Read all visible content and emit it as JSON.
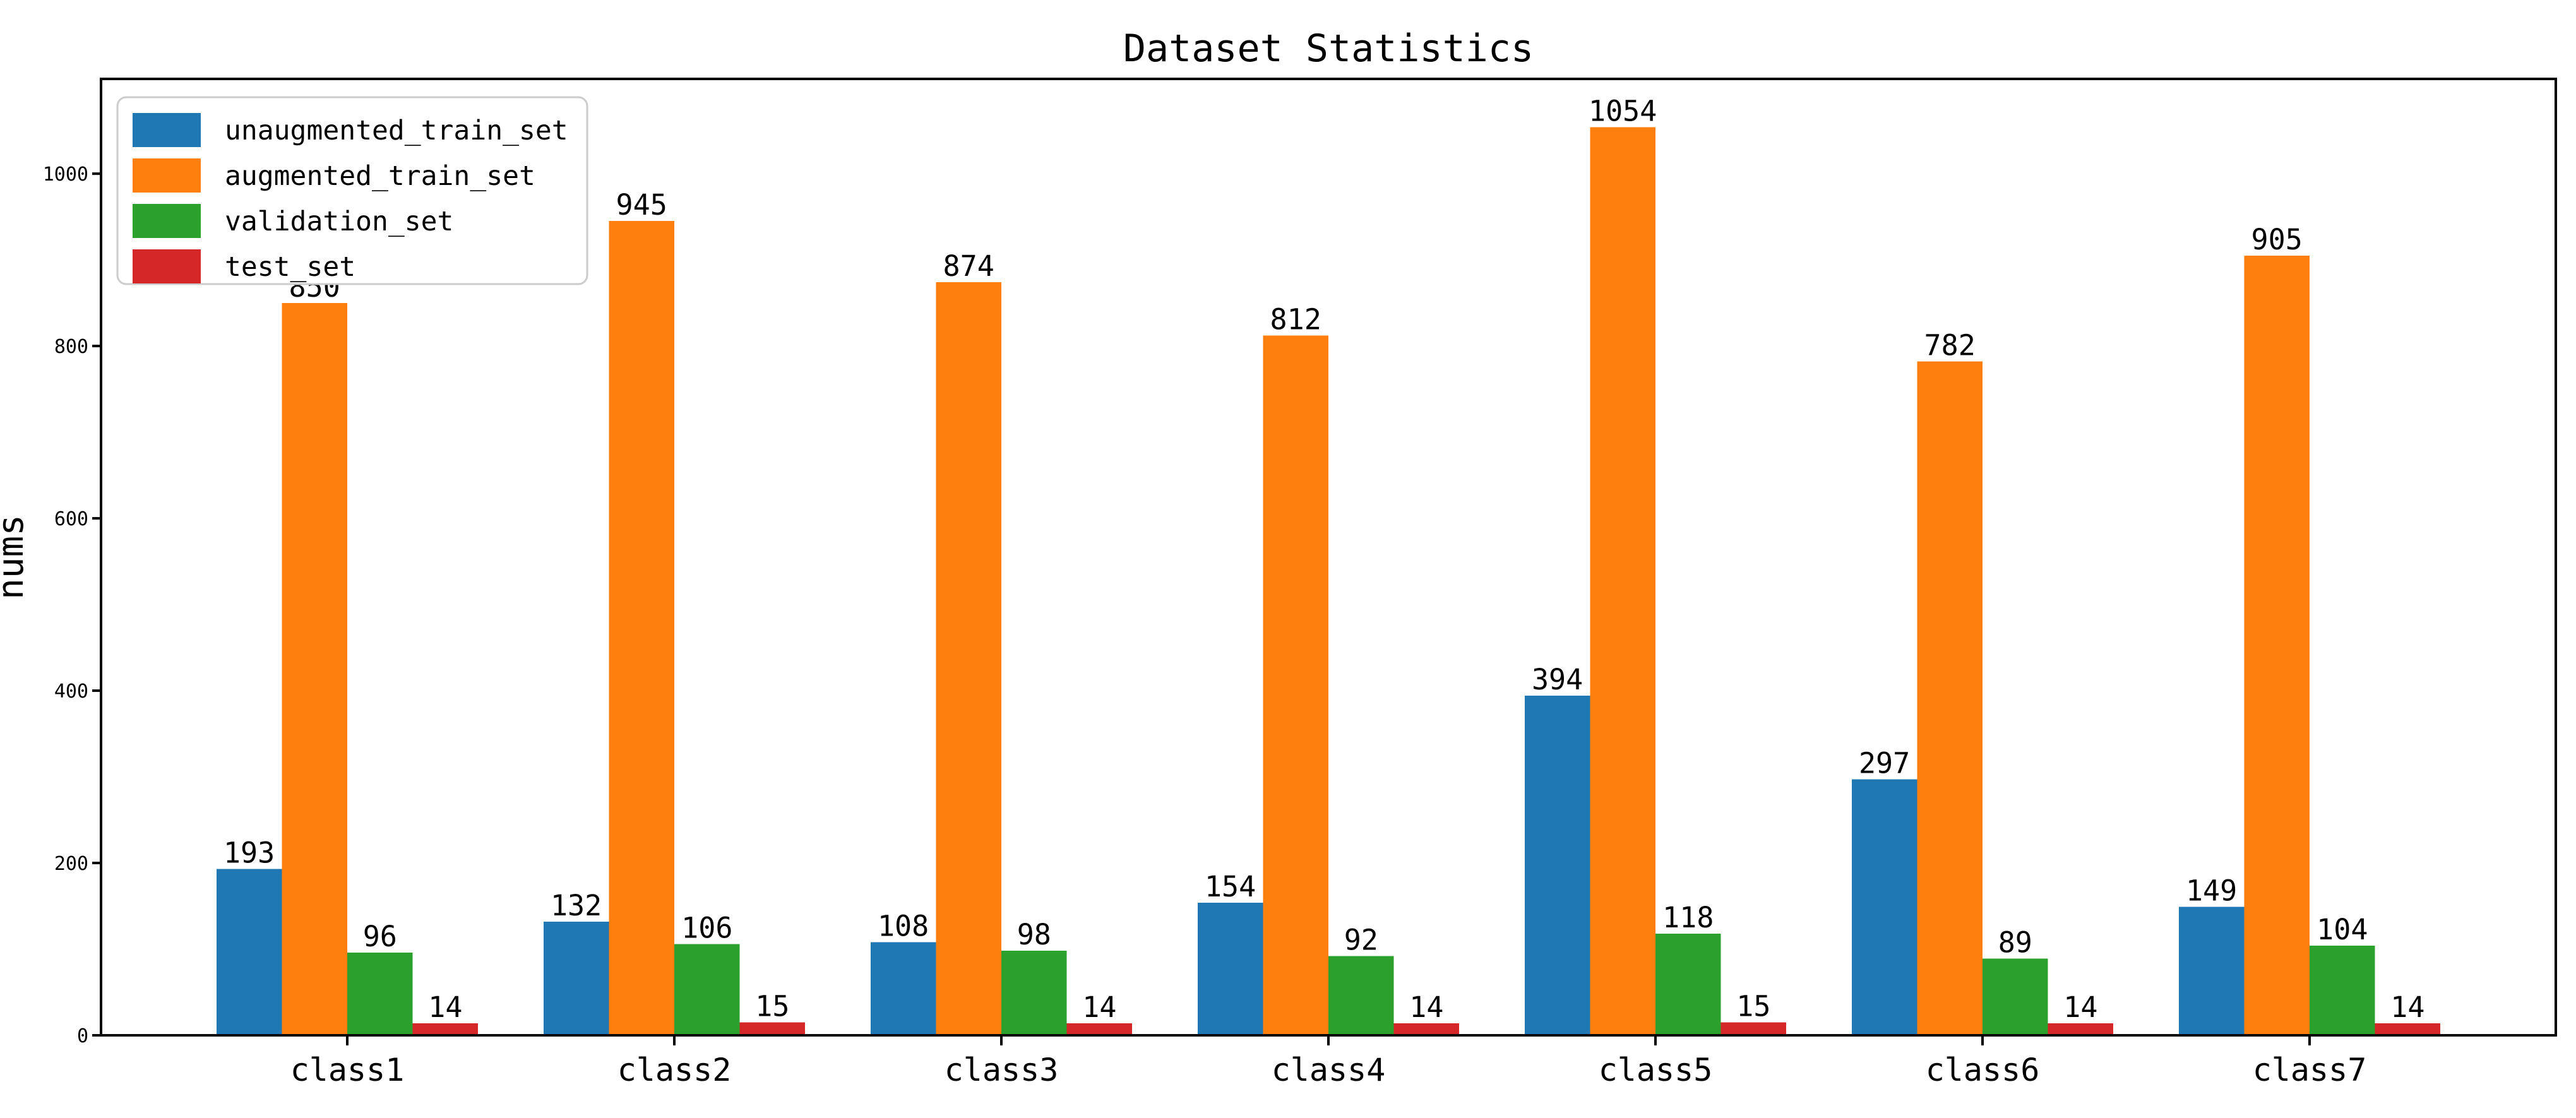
{
  "chart_data": {
    "type": "bar",
    "title": "Dataset Statistics",
    "xlabel": "",
    "ylabel": "nums",
    "categories": [
      "class1",
      "class2",
      "class3",
      "class4",
      "class5",
      "class6",
      "class7"
    ],
    "series": [
      {
        "name": "unaugmented_train_set",
        "color": "#1f77b4",
        "values": [
          193,
          132,
          108,
          154,
          394,
          297,
          149
        ]
      },
      {
        "name": "augmented_train_set",
        "color": "#ff7f0e",
        "values": [
          850,
          945,
          874,
          812,
          1054,
          782,
          905
        ]
      },
      {
        "name": "validation_set",
        "color": "#2ca02c",
        "values": [
          96,
          106,
          98,
          92,
          118,
          89,
          104
        ]
      },
      {
        "name": "test_set",
        "color": "#d62728",
        "values": [
          14,
          15,
          14,
          14,
          15,
          14,
          14
        ]
      }
    ],
    "yticks": [
      0,
      200,
      400,
      600,
      800,
      1000
    ],
    "ylim": [
      0,
      1110
    ],
    "grid": false,
    "bar_value_labels": true,
    "legend_position": "upper-left"
  },
  "style": {
    "background": "#ffffff",
    "axis_color": "#000000",
    "text_color": "#000000",
    "legend_border": "#cccccc",
    "legend_fill": "#ffffff"
  }
}
